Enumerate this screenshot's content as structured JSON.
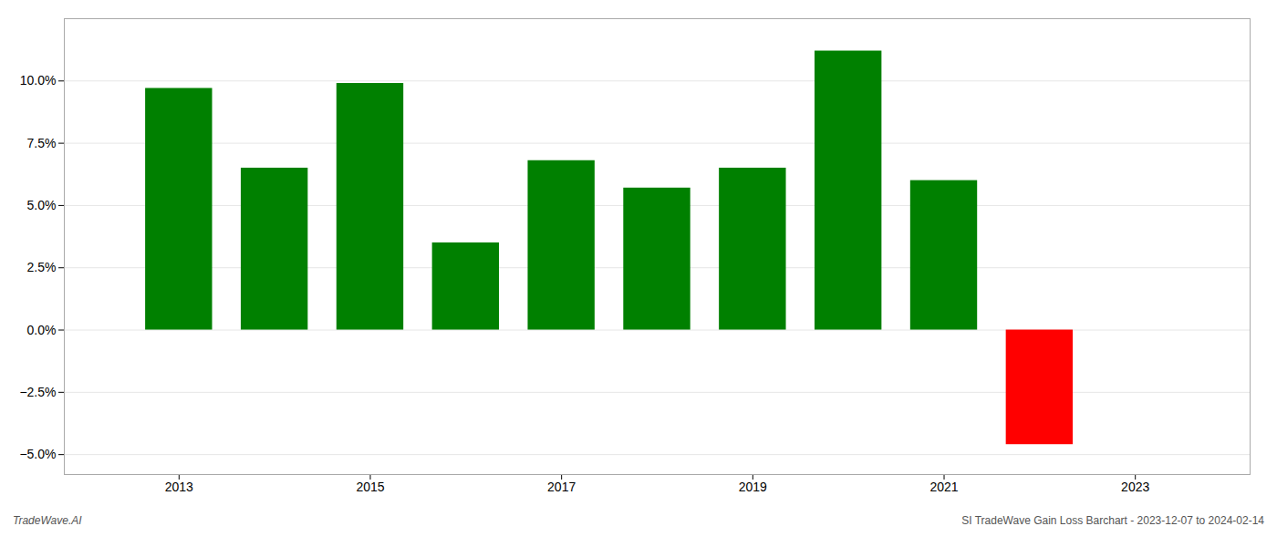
{
  "chart_data": {
    "type": "bar",
    "x": [
      2013,
      2014,
      2015,
      2016,
      2017,
      2018,
      2019,
      2020,
      2021,
      2022
    ],
    "values": [
      0.097,
      0.065,
      0.099,
      0.035,
      0.068,
      0.057,
      0.065,
      0.112,
      0.06,
      -0.046
    ],
    "colors": [
      "#008000",
      "#008000",
      "#008000",
      "#008000",
      "#008000",
      "#008000",
      "#008000",
      "#008000",
      "#008000",
      "#ff0000"
    ],
    "xlim": [
      2011.8,
      2024.2
    ],
    "xticks": [
      2013,
      2015,
      2017,
      2019,
      2021,
      2023
    ],
    "ylim": [
      -0.058,
      0.125
    ],
    "yticks": [
      {
        "value": -0.05,
        "label": "−5.0%"
      },
      {
        "value": -0.025,
        "label": "−2.5%"
      },
      {
        "value": 0.0,
        "label": "0.0%"
      },
      {
        "value": 0.025,
        "label": "2.5%"
      },
      {
        "value": 0.05,
        "label": "5.0%"
      },
      {
        "value": 0.075,
        "label": "7.5%"
      },
      {
        "value": 0.1,
        "label": "10.0%"
      }
    ],
    "grid": true,
    "annotations": [
      "TradeWave.AI",
      "SI TradeWave Gain Loss Barchart - 2023-12-07 to 2024-02-14"
    ]
  }
}
